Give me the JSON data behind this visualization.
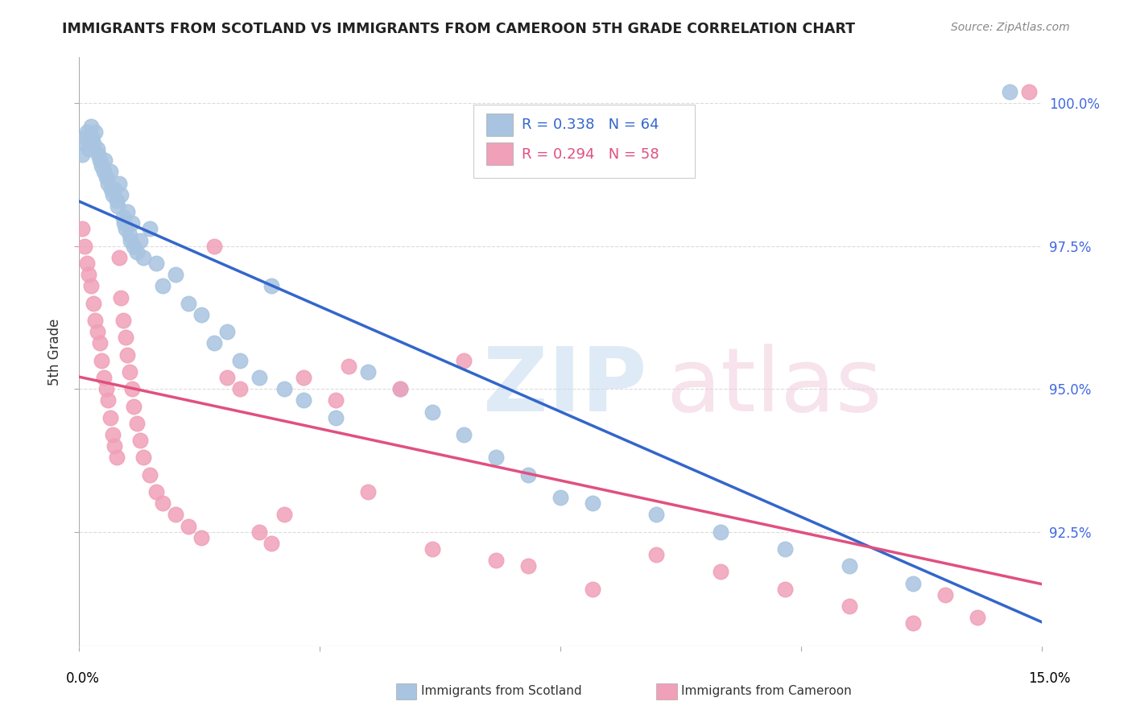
{
  "title": "IMMIGRANTS FROM SCOTLAND VS IMMIGRANTS FROM CAMEROON 5TH GRADE CORRELATION CHART",
  "source": "Source: ZipAtlas.com",
  "ylabel": "5th Grade",
  "xlim": [
    0.0,
    15.0
  ],
  "ylim": [
    90.5,
    100.8
  ],
  "scotland_R": 0.338,
  "scotland_N": 64,
  "cameroon_R": 0.294,
  "cameroon_N": 58,
  "scotland_color": "#a8c4e0",
  "cameroon_color": "#f0a0b8",
  "scotland_line_color": "#3366cc",
  "cameroon_line_color": "#e05080",
  "scotland_x": [
    0.05,
    0.08,
    0.1,
    0.12,
    0.15,
    0.18,
    0.2,
    0.22,
    0.25,
    0.28,
    0.3,
    0.32,
    0.35,
    0.38,
    0.4,
    0.42,
    0.45,
    0.48,
    0.5,
    0.52,
    0.55,
    0.58,
    0.6,
    0.62,
    0.65,
    0.68,
    0.7,
    0.72,
    0.75,
    0.78,
    0.8,
    0.82,
    0.85,
    0.9,
    0.95,
    1.0,
    1.1,
    1.2,
    1.3,
    1.5,
    1.7,
    1.9,
    2.1,
    2.3,
    2.5,
    2.8,
    3.0,
    3.2,
    3.5,
    4.0,
    4.5,
    5.0,
    5.5,
    6.0,
    6.5,
    7.0,
    7.5,
    8.0,
    9.0,
    10.0,
    11.0,
    12.0,
    13.0,
    14.5
  ],
  "scotland_y": [
    99.1,
    99.3,
    99.4,
    99.5,
    99.2,
    99.6,
    99.4,
    99.3,
    99.5,
    99.2,
    99.1,
    99.0,
    98.9,
    98.8,
    99.0,
    98.7,
    98.6,
    98.8,
    98.5,
    98.4,
    98.5,
    98.3,
    98.2,
    98.6,
    98.4,
    98.0,
    97.9,
    97.8,
    98.1,
    97.7,
    97.6,
    97.9,
    97.5,
    97.4,
    97.6,
    97.3,
    97.8,
    97.2,
    96.8,
    97.0,
    96.5,
    96.3,
    95.8,
    96.0,
    95.5,
    95.2,
    96.8,
    95.0,
    94.8,
    94.5,
    95.3,
    95.0,
    94.6,
    94.2,
    93.8,
    93.5,
    93.1,
    93.0,
    92.8,
    92.5,
    92.2,
    91.9,
    91.6,
    100.2
  ],
  "cameroon_x": [
    0.05,
    0.08,
    0.12,
    0.15,
    0.18,
    0.22,
    0.25,
    0.28,
    0.32,
    0.35,
    0.38,
    0.42,
    0.45,
    0.48,
    0.52,
    0.55,
    0.58,
    0.62,
    0.65,
    0.68,
    0.72,
    0.75,
    0.78,
    0.82,
    0.85,
    0.9,
    0.95,
    1.0,
    1.1,
    1.2,
    1.3,
    1.5,
    1.7,
    1.9,
    2.1,
    2.3,
    2.5,
    2.8,
    3.0,
    3.5,
    4.0,
    4.5,
    5.0,
    5.5,
    6.0,
    6.5,
    7.0,
    8.0,
    9.0,
    10.0,
    11.0,
    12.0,
    13.0,
    13.5,
    14.0,
    14.8,
    3.2,
    4.2
  ],
  "cameroon_y": [
    97.8,
    97.5,
    97.2,
    97.0,
    96.8,
    96.5,
    96.2,
    96.0,
    95.8,
    95.5,
    95.2,
    95.0,
    94.8,
    94.5,
    94.2,
    94.0,
    93.8,
    97.3,
    96.6,
    96.2,
    95.9,
    95.6,
    95.3,
    95.0,
    94.7,
    94.4,
    94.1,
    93.8,
    93.5,
    93.2,
    93.0,
    92.8,
    92.6,
    92.4,
    97.5,
    95.2,
    95.0,
    92.5,
    92.3,
    95.2,
    94.8,
    93.2,
    95.0,
    92.2,
    95.5,
    92.0,
    91.9,
    91.5,
    92.1,
    91.8,
    91.5,
    91.2,
    90.9,
    91.4,
    91.0,
    100.2,
    92.8,
    95.4
  ]
}
